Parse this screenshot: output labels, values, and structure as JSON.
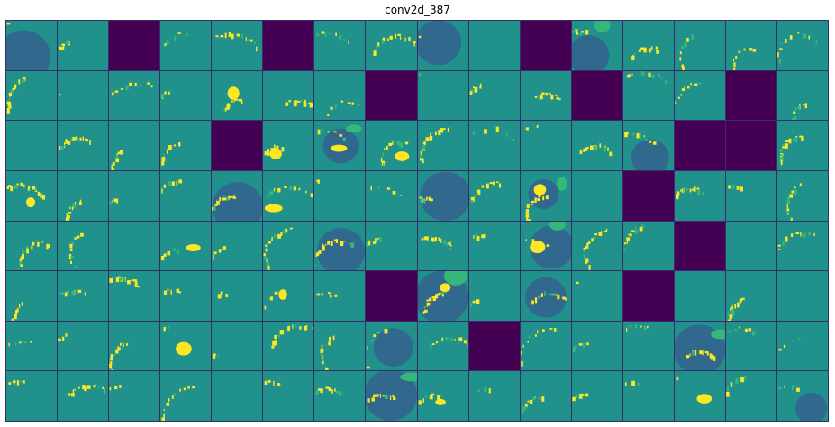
{
  "figure": {
    "title": "conv2d_387",
    "grid": {
      "rows": 8,
      "cols": 16
    },
    "colormap": {
      "low": "#440154",
      "mid": "#21918c",
      "dark_blob": "#31688e",
      "high": "#fde725",
      "mid_high": "#35b779"
    },
    "dead_tiles": [
      [
        0,
        2
      ],
      [
        0,
        5
      ],
      [
        0,
        10
      ],
      [
        1,
        7
      ],
      [
        1,
        11
      ],
      [
        1,
        14
      ],
      [
        2,
        4
      ],
      [
        2,
        13
      ],
      [
        2,
        14
      ],
      [
        3,
        12
      ],
      [
        4,
        13
      ],
      [
        5,
        7
      ],
      [
        5,
        12
      ],
      [
        6,
        9
      ]
    ],
    "dark_blob_tiles": [
      [
        0,
        0
      ],
      [
        0,
        8
      ],
      [
        0,
        11
      ],
      [
        2,
        6
      ],
      [
        2,
        12
      ],
      [
        3,
        4
      ],
      [
        3,
        8
      ],
      [
        3,
        10
      ],
      [
        4,
        6
      ],
      [
        4,
        10
      ],
      [
        5,
        8
      ],
      [
        5,
        10
      ],
      [
        6,
        7
      ],
      [
        6,
        13
      ],
      [
        7,
        7
      ],
      [
        7,
        15
      ]
    ]
  }
}
